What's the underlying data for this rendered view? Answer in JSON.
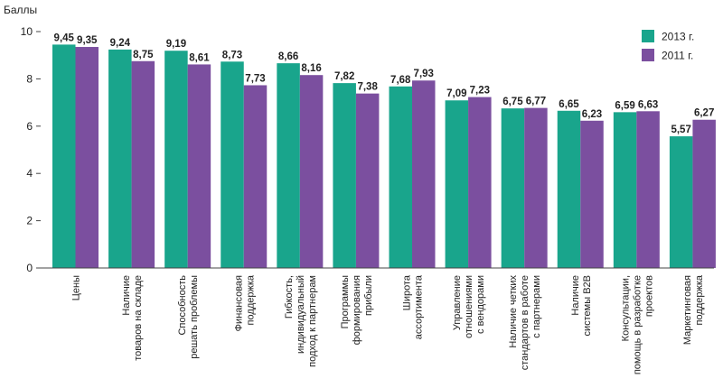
{
  "chart_data": {
    "type": "bar",
    "ylabel": "Баллы",
    "ylim": [
      0,
      10
    ],
    "yticks": [
      0,
      2,
      4,
      6,
      8,
      10
    ],
    "legend_position": "top-right",
    "categories": [
      [
        "Цены"
      ],
      [
        "Наличие",
        "товаров на складе"
      ],
      [
        "Способность",
        "решать проблемы"
      ],
      [
        "Финансовая",
        "поддержка"
      ],
      [
        "Гибкость,",
        "индивидуальный",
        "подход к партнерам"
      ],
      [
        "Программы",
        "формирования",
        "прибыли"
      ],
      [
        "Широта",
        "ассортимента"
      ],
      [
        "Управление",
        "отношениями",
        "с вендорами"
      ],
      [
        "Наличие четких",
        "стандартов в работе",
        "с партнерами"
      ],
      [
        "Наличие",
        "системы B2B"
      ],
      [
        "Консультации,",
        "помощь в разработке",
        "проектов"
      ],
      [
        "Маркетинговая",
        "поддержка"
      ]
    ],
    "series": [
      {
        "name": "2013 г.",
        "color": "#19a58c",
        "values": [
          9.45,
          9.24,
          9.19,
          8.73,
          8.66,
          7.82,
          7.68,
          7.09,
          6.75,
          6.65,
          6.59,
          5.57
        ],
        "labels": [
          "9,45",
          "9,24",
          "9,19",
          "8,73",
          "8,66",
          "7,82",
          "7,68",
          "7,09",
          "6,75",
          "6,65",
          "6,59",
          "5,57"
        ]
      },
      {
        "name": "2011 г.",
        "color": "#7b4f9f",
        "values": [
          9.35,
          8.75,
          8.61,
          7.73,
          8.16,
          7.38,
          7.93,
          7.23,
          6.77,
          6.23,
          6.63,
          6.27
        ],
        "labels": [
          "9,35",
          "8,75",
          "8,61",
          "7,73",
          "8,16",
          "7,38",
          "7,93",
          "7,23",
          "6,77",
          "6,23",
          "6,63",
          "6,27"
        ]
      }
    ]
  }
}
